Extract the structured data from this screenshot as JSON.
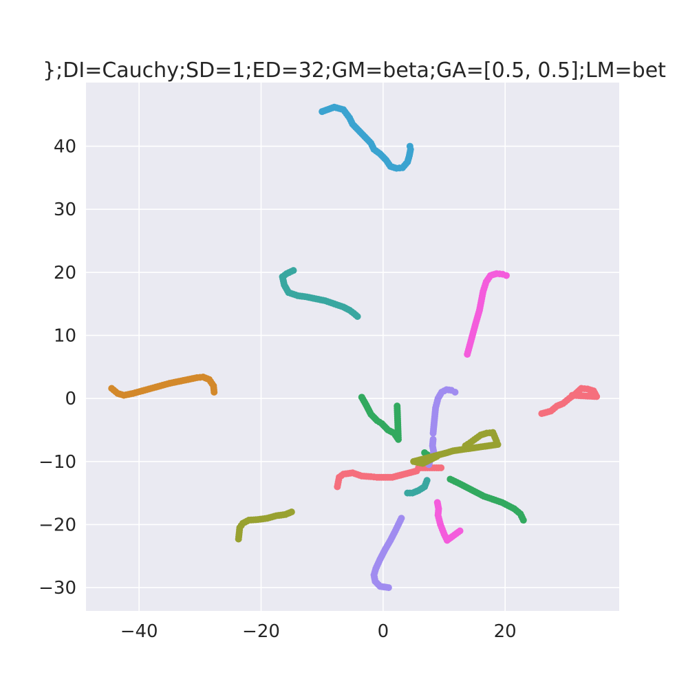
{
  "chart_data": {
    "type": "scatter",
    "title": "};DI=Cauchy;SD=1;ED=32;GM=beta;GA=[0.5, 0.5];LM=bet",
    "xlabel": "",
    "ylabel": "",
    "xlim": [
      -48.7,
      38.7
    ],
    "ylim": [
      -33.7,
      50.1
    ],
    "grid": true,
    "legend": "none",
    "background": "#eaeaf2",
    "grid_color": "#ffffff",
    "xticks": [
      {
        "value": -40,
        "label": "−40"
      },
      {
        "value": -20,
        "label": "−20"
      },
      {
        "value": 0,
        "label": "0"
      },
      {
        "value": 20,
        "label": "20"
      }
    ],
    "yticks": [
      {
        "value": 40,
        "label": "40"
      },
      {
        "value": 30,
        "label": "30"
      },
      {
        "value": 20,
        "label": "20"
      },
      {
        "value": 10,
        "label": "10"
      },
      {
        "value": 0,
        "label": "0"
      },
      {
        "value": -10,
        "label": "−10"
      },
      {
        "value": -20,
        "label": "−20"
      },
      {
        "value": -30,
        "label": "−30"
      }
    ],
    "series": [
      {
        "color": "#3ba3d0",
        "x": [
          -10,
          -8,
          -6.5,
          -5.5,
          -5,
          -4,
          -3,
          -2,
          -1.5,
          -0.5,
          0.5,
          1.2,
          2.2,
          3.2,
          4,
          4.3,
          4.5,
          4.4
        ],
        "y": [
          45.5,
          46.2,
          45.8,
          44.5,
          43.5,
          42.5,
          41.5,
          40.5,
          39.5,
          38.8,
          37.8,
          36.8,
          36.5,
          36.6,
          37.5,
          38.5,
          39.5,
          40
        ]
      },
      {
        "color": "#39a7a0",
        "x": [
          -14.7,
          -15.8,
          -16.5,
          -16.2,
          -15.5,
          -14,
          -12.5,
          -11,
          -9.5,
          -8,
          -6.5,
          -5.5,
          -4.8,
          -4.2
        ],
        "y": [
          20.3,
          19.8,
          19.3,
          18,
          16.8,
          16.3,
          16.1,
          15.8,
          15.5,
          15,
          14.5,
          14,
          13.5,
          13
        ]
      },
      {
        "color": "#f45cdc",
        "x": [
          13.8,
          14.5,
          15.2,
          15.8,
          16.1,
          16.4,
          16.9,
          17.6,
          18.6,
          19.6,
          20.2
        ],
        "y": [
          7,
          9.5,
          12,
          14,
          15.5,
          17,
          18.5,
          19.5,
          19.8,
          19.7,
          19.5
        ]
      },
      {
        "color": "#d3892b",
        "x": [
          -44.5,
          -43.5,
          -42.5,
          -41,
          -39.5,
          -38,
          -36.5,
          -35,
          -33.5,
          -32,
          -30.5,
          -29.5,
          -28.5,
          -27.8,
          -27.7
        ],
        "y": [
          1.6,
          0.8,
          0.5,
          0.8,
          1.2,
          1.6,
          2,
          2.4,
          2.7,
          3,
          3.3,
          3.4,
          3,
          2,
          1
        ]
      },
      {
        "color": "#f56f7d",
        "x": [
          26,
          27.5,
          28.5,
          29.5,
          30.5,
          31.5,
          32.5,
          33.5,
          34.5,
          35,
          31
        ],
        "y": [
          -2.4,
          -2,
          -1.2,
          -0.8,
          0,
          0.7,
          1.6,
          1.5,
          1.2,
          0.3,
          0.5
        ]
      },
      {
        "color": "#f56f7d",
        "x": [
          -7.5,
          -7.2,
          -6.5,
          -5,
          -3.5,
          -2,
          -1,
          1.5,
          5.5,
          5.8,
          9.5
        ],
        "y": [
          -14,
          -12.5,
          -12,
          -11.8,
          -12.3,
          -12.4,
          -12.5,
          -12.5,
          -11.5,
          -11,
          -11
        ]
      },
      {
        "color": "#a08cf0",
        "x": [
          8.2,
          8.4,
          8.6,
          9,
          9.6,
          10.4,
          11.2,
          11.8,
          8.2,
          8.1,
          8.3,
          7.8,
          7.5
        ],
        "y": [
          -5.5,
          -3.5,
          -1.5,
          0,
          1,
          1.4,
          1.3,
          1,
          -6.5,
          -7.5,
          -8.5,
          -9.5,
          -10.5
        ]
      },
      {
        "color": "#a08cf0",
        "x": [
          3,
          2.5,
          2,
          1.2,
          0.3,
          -0.5,
          -1.2,
          -1.5,
          -1.3,
          -0.5,
          0.9
        ],
        "y": [
          -19,
          -20,
          -21,
          -22.5,
          -24,
          -25.5,
          -27,
          -28,
          -29,
          -29.8,
          -30
        ]
      },
      {
        "color": "#f45cdc",
        "x": [
          8.9,
          9.1,
          9,
          9.4,
          10,
          10.5,
          12.6
        ],
        "y": [
          -16.5,
          -17.5,
          -18.5,
          -20,
          -21.5,
          -22.5,
          -21
        ]
      },
      {
        "color": "#32a95f",
        "x": [
          -3.5,
          -2.8,
          -2,
          -1.5,
          -1,
          -0.2,
          0.8,
          1.8,
          2.5,
          2.3,
          6.8,
          7.2
        ],
        "y": [
          0.2,
          -1,
          -2.5,
          -3,
          -3.5,
          -4,
          -5,
          -5.5,
          -6.5,
          -1.2,
          -8.6,
          -8.9
        ]
      },
      {
        "color": "#32a95f",
        "x": [
          11,
          12.5,
          14.5,
          16.5,
          18,
          19.5,
          20.5,
          21.5,
          22.5,
          23
        ],
        "y": [
          -12.8,
          -13.5,
          -14.5,
          -15.5,
          -16,
          -16.5,
          -17,
          -17.5,
          -18.3,
          -19.3
        ]
      },
      {
        "color": "#98a131",
        "x": [
          -23.7,
          -23.5,
          -23,
          -22,
          -20.5,
          -19,
          -17.5,
          -16,
          -15
        ],
        "y": [
          -22.3,
          -20.5,
          -19.8,
          -19.3,
          -19.2,
          -19,
          -18.6,
          -18.4,
          -18
        ]
      },
      {
        "color": "#98a131",
        "x": [
          13.5,
          14.3,
          15,
          16,
          17,
          18,
          18.6,
          18.8,
          11.5,
          10.5,
          5,
          6.5,
          8.8
        ],
        "y": [
          -7.5,
          -7,
          -6.5,
          -5.8,
          -5.5,
          -5.4,
          -6.8,
          -7.3,
          -8.3,
          -8.6,
          -10,
          -10.3,
          -9.2
        ]
      },
      {
        "color": "#39a7a0",
        "x": [
          4,
          4.8,
          5.8,
          6.8,
          7.2
        ],
        "y": [
          -15,
          -15,
          -14.6,
          -14,
          -13
        ]
      }
    ]
  }
}
